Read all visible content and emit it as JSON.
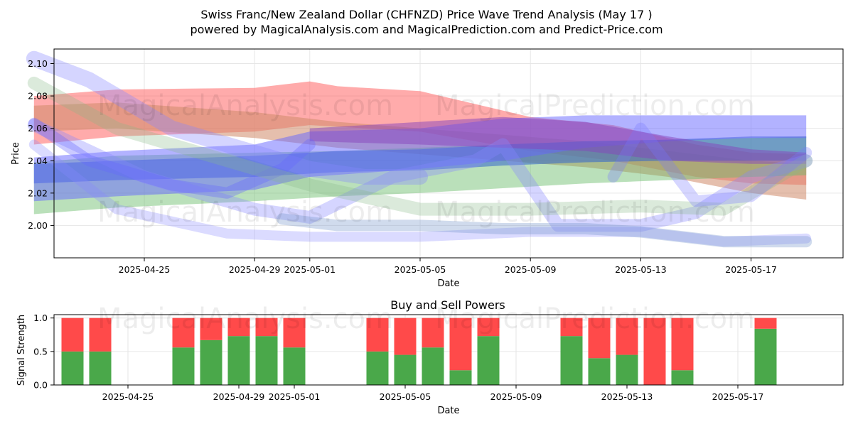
{
  "title_line1": "Swiss Franc/New Zealand Dollar (CHFNZD) Price Wave Trend Analysis (May 17 )",
  "title_line2": "powered by MagicalAnalysis.com and MagicalPrediction.com and Predict-Price.com",
  "watermarks": [
    "MagicalAnalysis.com",
    "MagicalPrediction.com"
  ],
  "chart_data": [
    {
      "type": "area",
      "title": "",
      "xlabel": "Date",
      "ylabel": "Price",
      "x_range": [
        "2025-04-21",
        "2025-05-21"
      ],
      "ylim": [
        1.98,
        2.109
      ],
      "yticks": [
        2.0,
        2.02,
        2.04,
        2.06,
        2.08,
        2.1
      ],
      "ytick_labels": [
        "2.00",
        "2.02",
        "2.04",
        "2.06",
        "2.08",
        "2.10"
      ],
      "xticks": [
        "2025-04-25",
        "2025-04-29",
        "2025-05-01",
        "2025-05-05",
        "2025-05-09",
        "2025-05-13",
        "2025-05-17"
      ],
      "grid": true,
      "series": [
        {
          "color": "#ff6666",
          "opacity": 0.55,
          "x": [
            "2025-04-21",
            "2025-04-24",
            "2025-04-29",
            "2025-05-01",
            "2025-05-02",
            "2025-05-05",
            "2025-05-07",
            "2025-05-09",
            "2025-05-12",
            "2025-05-15",
            "2025-05-17",
            "2025-05-19"
          ],
          "low": [
            2.05,
            2.055,
            2.058,
            2.062,
            2.061,
            2.058,
            2.052,
            2.046,
            2.04,
            2.03,
            2.026,
            2.025
          ],
          "high": [
            2.08,
            2.084,
            2.085,
            2.089,
            2.086,
            2.083,
            2.075,
            2.067,
            2.062,
            2.05,
            2.045,
            2.044
          ]
        },
        {
          "color": "#d08a6a",
          "opacity": 0.55,
          "x": [
            "2025-04-21",
            "2025-04-24",
            "2025-04-29",
            "2025-05-02",
            "2025-05-05",
            "2025-05-08",
            "2025-05-11",
            "2025-05-14",
            "2025-05-17",
            "2025-05-19"
          ],
          "low": [
            2.058,
            2.06,
            2.054,
            2.048,
            2.044,
            2.04,
            2.036,
            2.03,
            2.02,
            2.016
          ],
          "high": [
            2.074,
            2.076,
            2.07,
            2.064,
            2.06,
            2.056,
            2.052,
            2.046,
            2.04,
            2.038
          ]
        },
        {
          "color": "#66bb66",
          "opacity": 0.45,
          "x": [
            "2025-04-21",
            "2025-04-24",
            "2025-04-29",
            "2025-05-02",
            "2025-05-05",
            "2025-05-08",
            "2025-05-11",
            "2025-05-14",
            "2025-05-17",
            "2025-05-19"
          ],
          "low": [
            2.007,
            2.011,
            2.015,
            2.018,
            2.02,
            2.023,
            2.026,
            2.028,
            2.03,
            2.031
          ],
          "high": [
            2.039,
            2.043,
            2.045,
            2.046,
            2.048,
            2.05,
            2.052,
            2.053,
            2.054,
            2.055
          ]
        },
        {
          "color": "#3366cc",
          "opacity": 0.55,
          "x": [
            "2025-04-21",
            "2025-04-24",
            "2025-04-29",
            "2025-05-02",
            "2025-05-05",
            "2025-05-08",
            "2025-05-11",
            "2025-05-14",
            "2025-05-17",
            "2025-05-19"
          ],
          "low": [
            2.026,
            2.028,
            2.03,
            2.033,
            2.034,
            2.037,
            2.039,
            2.04,
            2.04,
            2.04
          ],
          "high": [
            2.038,
            2.04,
            2.043,
            2.046,
            2.047,
            2.05,
            2.052,
            2.053,
            2.055,
            2.055
          ]
        },
        {
          "color": "#6666ff",
          "opacity": 0.5,
          "x": [
            "2025-04-21",
            "2025-04-24",
            "2025-04-29",
            "2025-05-01",
            "2025-05-05",
            "2025-05-08",
            "2025-05-11",
            "2025-05-14",
            "2025-05-17",
            "2025-05-19"
          ],
          "low": [
            2.015,
            2.018,
            2.022,
            2.03,
            2.035,
            2.04,
            2.048,
            2.052,
            2.054,
            2.054
          ],
          "high": [
            2.042,
            2.046,
            2.05,
            2.058,
            2.06,
            2.066,
            2.068,
            2.068,
            2.068,
            2.068
          ]
        },
        {
          "color": "#8844bb",
          "opacity": 0.5,
          "x": [
            "2025-05-01",
            "2025-05-05",
            "2025-05-08",
            "2025-05-11",
            "2025-05-14",
            "2025-05-17",
            "2025-05-19"
          ],
          "low": [
            2.052,
            2.05,
            2.048,
            2.046,
            2.04,
            2.038,
            2.038
          ],
          "high": [
            2.06,
            2.064,
            2.067,
            2.064,
            2.055,
            2.047,
            2.045
          ]
        }
      ],
      "waves": [
        {
          "color": "#8888ff",
          "opacity": 0.35,
          "width": 22,
          "x": [
            "2025-04-21",
            "2025-04-23",
            "2025-04-26",
            "2025-04-29",
            "2025-05-01",
            "2025-05-03",
            "2025-05-05"
          ],
          "y": [
            2.103,
            2.09,
            2.06,
            2.045,
            2.035,
            2.03,
            2.03
          ]
        },
        {
          "color": "#8888ff",
          "opacity": 0.35,
          "width": 18,
          "x": [
            "2025-04-21",
            "2025-04-25",
            "2025-04-29",
            "2025-05-01",
            "2025-05-04",
            "2025-05-07",
            "2025-05-08",
            "2025-05-10",
            "2025-05-13",
            "2025-05-15",
            "2025-05-17",
            "2025-05-19"
          ],
          "y": [
            2.062,
            2.03,
            2.01,
            2.005,
            2.03,
            2.04,
            2.05,
            2.0,
            2.0,
            2.008,
            2.03,
            2.04
          ]
        },
        {
          "color": "#8888ff",
          "opacity": 0.3,
          "width": 14,
          "x": [
            "2025-04-21",
            "2025-04-24",
            "2025-04-28",
            "2025-05-01",
            "2025-05-05",
            "2025-05-09",
            "2025-05-13",
            "2025-05-16",
            "2025-05-19"
          ],
          "y": [
            2.05,
            2.01,
            1.995,
            1.993,
            1.993,
            1.996,
            1.996,
            1.99,
            1.992
          ]
        },
        {
          "color": "#6666ff",
          "opacity": 0.35,
          "width": 16,
          "x": [
            "2025-04-21",
            "2025-04-23",
            "2025-04-26",
            "2025-04-28",
            "2025-04-30",
            "2025-05-01"
          ],
          "y": [
            2.063,
            2.04,
            2.025,
            2.02,
            2.035,
            2.05
          ]
        },
        {
          "color": "#7799cc",
          "opacity": 0.35,
          "width": 16,
          "x": [
            "2025-04-30",
            "2025-05-02",
            "2025-05-05",
            "2025-05-08",
            "2025-05-11",
            "2025-05-13",
            "2025-05-16",
            "2025-05-19"
          ],
          "y": [
            2.004,
            2.0,
            2.0,
            1.998,
            1.998,
            1.996,
            1.99,
            1.99
          ]
        },
        {
          "color": "#88bb88",
          "opacity": 0.3,
          "width": 18,
          "x": [
            "2025-04-21",
            "2025-04-24",
            "2025-04-28",
            "2025-05-01",
            "2025-05-05",
            "2025-05-09",
            "2025-05-13",
            "2025-05-16",
            "2025-05-19"
          ],
          "y": [
            2.088,
            2.06,
            2.04,
            2.025,
            2.01,
            2.01,
            2.012,
            2.01,
            2.04
          ]
        },
        {
          "color": "#7777ff",
          "opacity": 0.3,
          "width": 16,
          "x": [
            "2025-05-12",
            "2025-05-13",
            "2025-05-15",
            "2025-05-17",
            "2025-05-19"
          ],
          "y": [
            2.03,
            2.06,
            2.015,
            2.018,
            2.045
          ]
        }
      ]
    },
    {
      "type": "bar",
      "title": "Buy and Sell Powers",
      "xlabel": "Date",
      "ylabel": "Signal Strength",
      "ylim": [
        0,
        1.05
      ],
      "yticks": [
        0.0,
        0.5,
        1.0
      ],
      "ytick_labels": [
        "0.0",
        "0.5",
        "1.0"
      ],
      "xticks": [
        "2025-04-25",
        "2025-04-29",
        "2025-05-01",
        "2025-05-05",
        "2025-05-09",
        "2025-05-13",
        "2025-05-17"
      ],
      "grid": true,
      "categories": [
        "2025-04-23",
        "2025-04-24",
        "2025-04-27",
        "2025-04-28",
        "2025-04-29",
        "2025-04-30",
        "2025-05-01",
        "2025-05-04",
        "2025-05-05",
        "2025-05-06",
        "2025-05-07",
        "2025-05-08",
        "2025-05-11",
        "2025-05-12",
        "2025-05-13",
        "2025-05-14",
        "2025-05-15",
        "2025-05-18"
      ],
      "series": [
        {
          "name": "buy",
          "color": "#4aa84a",
          "values": [
            0.5,
            0.5,
            0.56,
            0.67,
            0.73,
            0.73,
            0.56,
            0.5,
            0.45,
            0.56,
            0.22,
            0.73,
            0.73,
            0.4,
            0.45,
            0.0,
            0.22,
            0.84
          ]
        },
        {
          "name": "sell",
          "color": "#ff4a4a",
          "values": [
            0.5,
            0.5,
            0.44,
            0.33,
            0.27,
            0.27,
            0.44,
            0.5,
            0.55,
            0.44,
            0.78,
            0.27,
            0.27,
            0.6,
            0.55,
            1.0,
            0.78,
            0.16
          ]
        }
      ]
    }
  ]
}
